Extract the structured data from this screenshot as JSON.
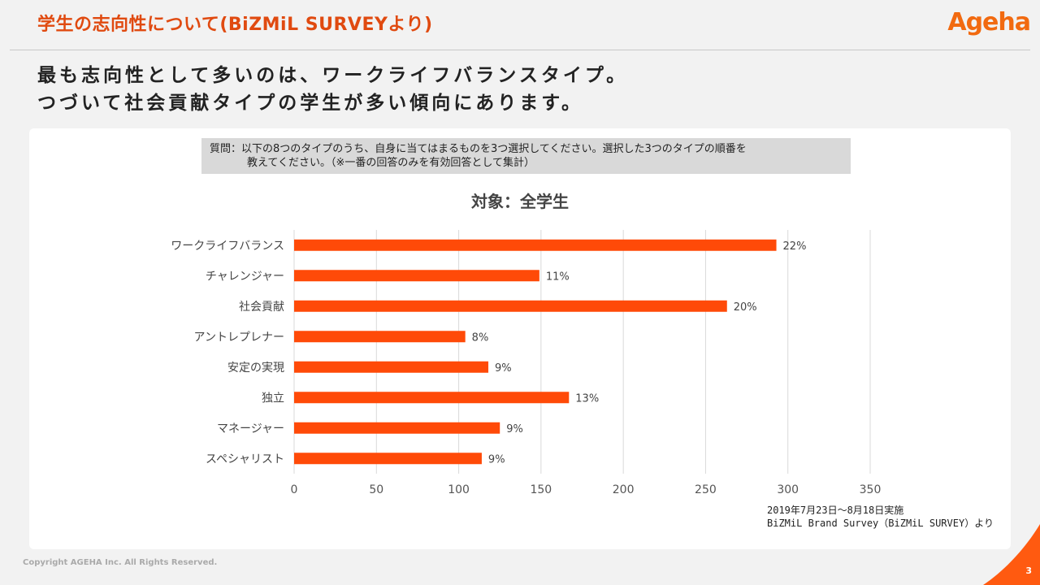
{
  "header": {
    "title": "学生の志向性について(BiZMiL SURVEYより)",
    "logo": "Ageha"
  },
  "headline": {
    "line1": "最も志向性として多いのは、ワークライフバランスタイプ。",
    "line2": "つづいて社会貢献タイプの学生が多い傾向にあります。"
  },
  "question": {
    "line1": "質問：以下の8つのタイプのうち、自身に当てはまるものを3つ選択してください。選択した3つのタイプの順番を",
    "line2": "教えてください。（※一番の回答のみを有効回答として集計）"
  },
  "chart_data": {
    "type": "bar",
    "orientation": "horizontal",
    "title": "対象：全学生",
    "categories": [
      "ワークライフバランス",
      "チャレンジャー",
      "社会貢献",
      "アントレプレナー",
      "安定の実現",
      "独立",
      "マネージャー",
      "スペシャリスト"
    ],
    "values": [
      293,
      149,
      263,
      104,
      118,
      167,
      125,
      114
    ],
    "data_labels": [
      "22%",
      "11%",
      "20%",
      "8%",
      "9%",
      "13%",
      "9%",
      "9%"
    ],
    "xlim": [
      0,
      350
    ],
    "xticks": [
      0,
      50,
      100,
      150,
      200,
      250,
      300,
      350
    ],
    "grid": "vertical",
    "bar_color": "#ff4a08"
  },
  "note": {
    "line1": "2019年7月23日～8月18日実施",
    "line2": "BiZMiL Brand Survey（BiZMiL SURVEY）より"
  },
  "footer": {
    "copyright": "Copyright AGEHA Inc. All Rights Reserved.",
    "page": "3"
  },
  "colors": {
    "accent": "#e04a10",
    "corner": "#ff5a10"
  }
}
